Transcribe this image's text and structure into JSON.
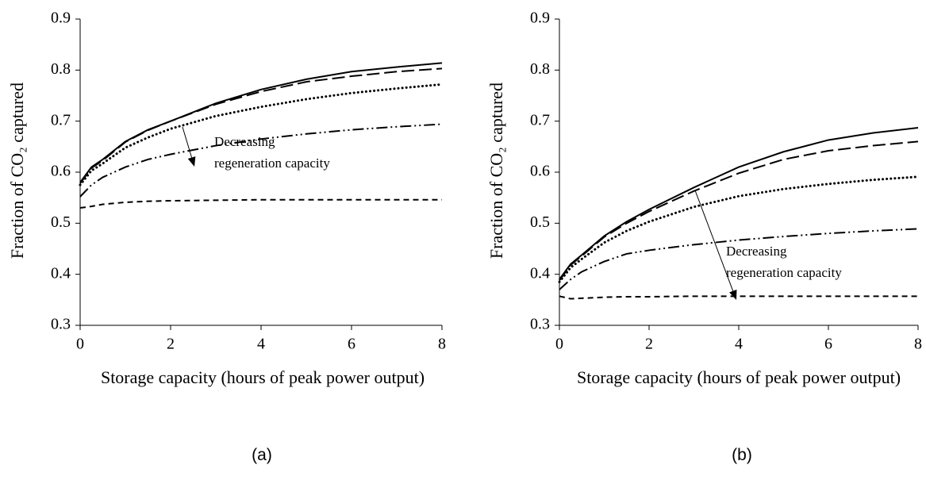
{
  "chart_data": [
    {
      "type": "line",
      "panel_label": "(a)",
      "ylabel": "Fraction of CO₂ captured",
      "xlabel": "Storage capacity (hours of peak power output)",
      "annotation": [
        "Decreasing",
        "regeneration capacity"
      ],
      "x": [
        0,
        0.25,
        0.5,
        1,
        1.5,
        2,
        3,
        4,
        5,
        6,
        7,
        8
      ],
      "xlim": [
        0,
        8
      ],
      "xticks": [
        0,
        2,
        4,
        6,
        8
      ],
      "ylim": [
        0.3,
        0.9
      ],
      "yticks": [
        0.3,
        0.4,
        0.5,
        0.6,
        0.7,
        0.8,
        0.9
      ],
      "grid": false,
      "series": [
        {
          "color": "#000000",
          "line_style": "solid",
          "values": [
            0.58,
            0.61,
            0.625,
            0.66,
            0.683,
            0.7,
            0.735,
            0.762,
            0.782,
            0.797,
            0.806,
            0.814
          ]
        },
        {
          "color": "#000000",
          "line_style": "dashed",
          "values": [
            0.578,
            0.608,
            0.623,
            0.659,
            0.682,
            0.7,
            0.733,
            0.758,
            0.777,
            0.788,
            0.797,
            0.803
          ]
        },
        {
          "color": "#000000",
          "line_style": "dotted",
          "values": [
            0.575,
            0.603,
            0.617,
            0.648,
            0.668,
            0.685,
            0.71,
            0.728,
            0.743,
            0.755,
            0.764,
            0.772
          ]
        },
        {
          "color": "#000000",
          "line_style": "dashdotdot",
          "values": [
            0.552,
            0.575,
            0.59,
            0.61,
            0.625,
            0.635,
            0.652,
            0.665,
            0.675,
            0.683,
            0.689,
            0.694
          ]
        },
        {
          "color": "#000000",
          "line_style": "shortdash",
          "values": [
            0.53,
            0.533,
            0.537,
            0.541,
            0.543,
            0.544,
            0.545,
            0.546,
            0.546,
            0.546,
            0.546,
            0.546
          ]
        }
      ]
    },
    {
      "type": "line",
      "panel_label": "(b)",
      "ylabel": "Fraction of CO₂ captured",
      "xlabel": "Storage capacity (hours of peak power output)",
      "annotation": [
        "Decreasing",
        "regeneration capacity"
      ],
      "x": [
        0,
        0.25,
        0.5,
        1,
        1.5,
        2,
        3,
        4,
        5,
        6,
        7,
        8
      ],
      "xlim": [
        0,
        8
      ],
      "xticks": [
        0,
        2,
        4,
        6,
        8
      ],
      "ylim": [
        0.3,
        0.9
      ],
      "yticks": [
        0.3,
        0.4,
        0.5,
        0.6,
        0.7,
        0.8,
        0.9
      ],
      "grid": false,
      "series": [
        {
          "color": "#000000",
          "line_style": "solid",
          "values": [
            0.39,
            0.42,
            0.438,
            0.475,
            0.503,
            0.527,
            0.57,
            0.61,
            0.64,
            0.663,
            0.677,
            0.687
          ]
        },
        {
          "color": "#000000",
          "line_style": "dashed",
          "values": [
            0.388,
            0.418,
            0.436,
            0.473,
            0.5,
            0.523,
            0.563,
            0.598,
            0.625,
            0.642,
            0.652,
            0.66
          ]
        },
        {
          "color": "#000000",
          "line_style": "dotted",
          "values": [
            0.385,
            0.413,
            0.43,
            0.462,
            0.485,
            0.503,
            0.532,
            0.553,
            0.567,
            0.577,
            0.585,
            0.591
          ]
        },
        {
          "color": "#000000",
          "line_style": "dashdotdot",
          "values": [
            0.37,
            0.39,
            0.405,
            0.425,
            0.44,
            0.447,
            0.458,
            0.467,
            0.474,
            0.48,
            0.485,
            0.489
          ]
        },
        {
          "color": "#000000",
          "line_style": "shortdash",
          "values": [
            0.357,
            0.352,
            0.353,
            0.355,
            0.356,
            0.356,
            0.357,
            0.357,
            0.357,
            0.357,
            0.357,
            0.357
          ]
        }
      ]
    }
  ]
}
